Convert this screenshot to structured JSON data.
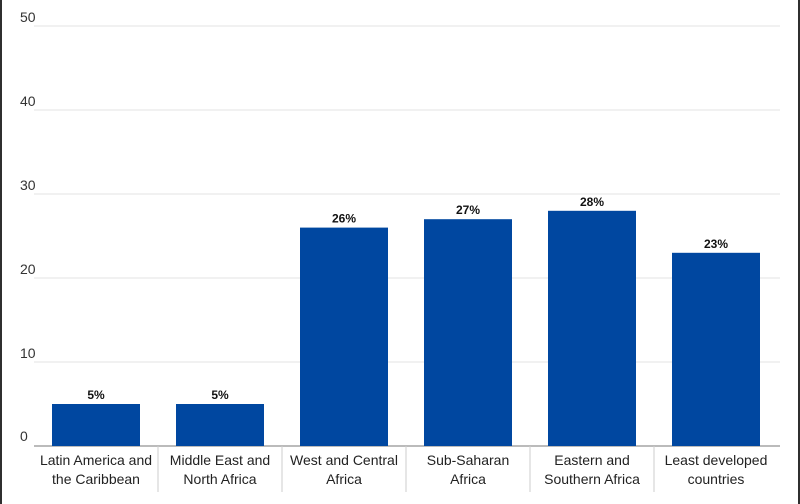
{
  "chart_data": {
    "type": "bar",
    "categories": [
      [
        "Latin America and",
        "the Caribbean"
      ],
      [
        "Middle East and",
        "North Africa"
      ],
      [
        "West and Central",
        "Africa"
      ],
      [
        "Sub-Saharan",
        "Africa"
      ],
      [
        "Eastern and",
        "Southern Africa"
      ],
      [
        "Least developed",
        "countries"
      ]
    ],
    "values": [
      5,
      5,
      26,
      27,
      28,
      23
    ],
    "data_labels": [
      "5%",
      "5%",
      "26%",
      "27%",
      "28%",
      "23%"
    ],
    "yticks": [
      0,
      10,
      20,
      30,
      40,
      50
    ],
    "ylim": [
      0,
      50
    ],
    "grid": true,
    "colors": {
      "bar": "#0047A0",
      "grid": "#e3e3e3",
      "axis": "#777777"
    }
  }
}
